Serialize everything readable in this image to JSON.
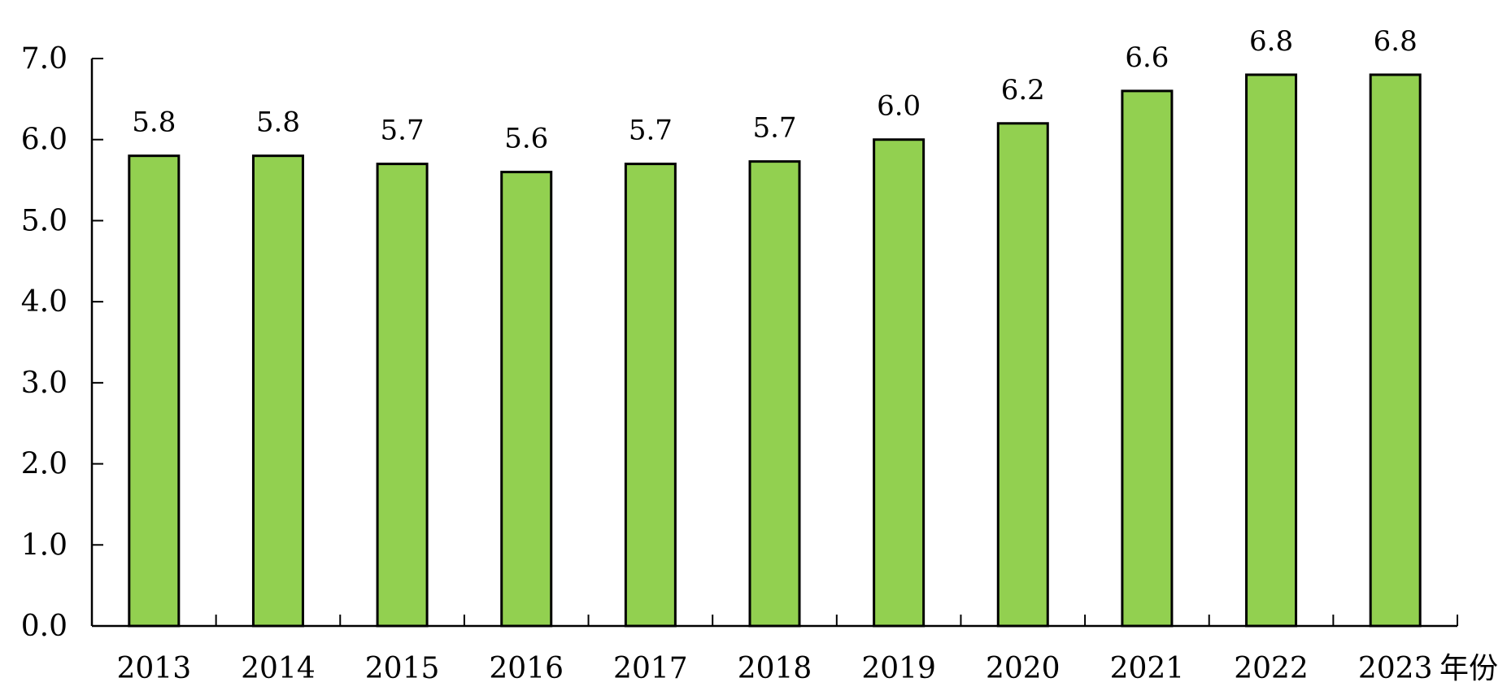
{
  "chart_data": {
    "type": "bar",
    "categories": [
      "2013",
      "2014",
      "2015",
      "2016",
      "2017",
      "2018",
      "2019",
      "2020",
      "2021",
      "2022",
      "2023"
    ],
    "values": [
      5.8,
      5.8,
      5.7,
      5.6,
      5.7,
      5.73,
      6.0,
      6.2,
      6.6,
      6.8,
      6.8
    ],
    "data_labels": [
      "5.8",
      "5.8",
      "5.7",
      "5.6",
      "5.7",
      "5.7",
      "6.0",
      "6.2",
      "6.6",
      "6.8",
      "6.8"
    ],
    "yticks": [
      "0.0",
      "1.0",
      "2.0",
      "3.0",
      "4.0",
      "5.0",
      "6.0",
      "7.0"
    ],
    "ylim": [
      0,
      7
    ],
    "xunit": "年份",
    "grid": false,
    "legend": "none",
    "bar_color": "#92d050",
    "bar_edge_color": "#000000"
  }
}
